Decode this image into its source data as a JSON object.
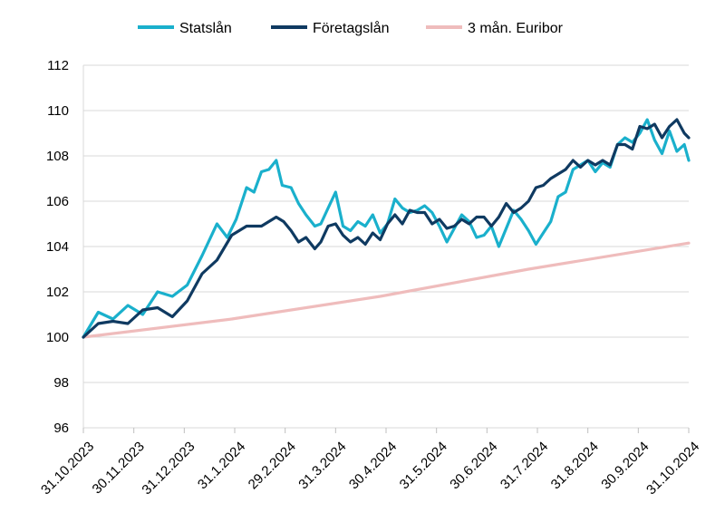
{
  "chart_data": {
    "type": "line",
    "title": "",
    "xlabel": "",
    "ylabel": "",
    "ylim": [
      96,
      112
    ],
    "yticks": [
      96,
      98,
      100,
      102,
      104,
      106,
      108,
      110,
      112
    ],
    "xtick_labels": [
      "31.10.2023",
      "30.11.2023",
      "31.12.2023",
      "31.1.2024",
      "29.2.2024",
      "31.3.2024",
      "30.4.2024",
      "31.5.2024",
      "30.6.2024",
      "31.7.2024",
      "31.8.2024",
      "30.9.2024",
      "31.10.2024"
    ],
    "grid": true,
    "legend_position": "top",
    "series": [
      {
        "name": "Statslån",
        "color": "#1ab0cc",
        "points": [
          [
            0,
            100.0
          ],
          [
            1,
            101.1
          ],
          [
            2,
            100.8
          ],
          [
            3,
            101.4
          ],
          [
            4,
            101.0
          ],
          [
            5,
            102.0
          ],
          [
            6,
            101.8
          ],
          [
            7,
            102.3
          ],
          [
            8,
            103.6
          ],
          [
            9,
            105.0
          ],
          [
            9.7,
            104.4
          ],
          [
            10.3,
            105.2
          ],
          [
            11,
            106.6
          ],
          [
            11.5,
            106.4
          ],
          [
            12,
            107.3
          ],
          [
            12.5,
            107.4
          ],
          [
            13,
            107.8
          ],
          [
            13.4,
            106.7
          ],
          [
            14,
            106.6
          ],
          [
            14.5,
            105.9
          ],
          [
            15,
            105.4
          ],
          [
            15.6,
            104.9
          ],
          [
            16,
            105.0
          ],
          [
            16.5,
            105.7
          ],
          [
            17,
            106.4
          ],
          [
            17.5,
            104.9
          ],
          [
            18,
            104.7
          ],
          [
            18.5,
            105.1
          ],
          [
            19,
            104.9
          ],
          [
            19.5,
            105.4
          ],
          [
            20,
            104.6
          ],
          [
            20.5,
            105.0
          ],
          [
            21,
            106.1
          ],
          [
            21.5,
            105.7
          ],
          [
            22,
            105.5
          ],
          [
            22.5,
            105.6
          ],
          [
            23,
            105.8
          ],
          [
            23.5,
            105.5
          ],
          [
            24,
            104.9
          ],
          [
            24.5,
            104.2
          ],
          [
            25,
            104.8
          ],
          [
            25.5,
            105.4
          ],
          [
            26,
            105.1
          ],
          [
            26.5,
            104.4
          ],
          [
            27,
            104.5
          ],
          [
            27.5,
            104.9
          ],
          [
            28,
            104.0
          ],
          [
            28.5,
            104.8
          ],
          [
            29,
            105.6
          ],
          [
            29.5,
            105.2
          ],
          [
            30,
            104.7
          ],
          [
            30.5,
            104.1
          ],
          [
            31,
            104.6
          ],
          [
            31.5,
            105.1
          ],
          [
            32,
            106.2
          ],
          [
            32.5,
            106.4
          ],
          [
            33,
            107.4
          ],
          [
            33.5,
            107.6
          ],
          [
            34,
            107.8
          ],
          [
            34.5,
            107.3
          ],
          [
            35,
            107.7
          ],
          [
            35.5,
            107.5
          ],
          [
            36,
            108.5
          ],
          [
            36.5,
            108.8
          ],
          [
            37,
            108.6
          ],
          [
            37.5,
            109.0
          ],
          [
            38,
            109.6
          ],
          [
            38.5,
            108.7
          ],
          [
            39,
            108.1
          ],
          [
            39.5,
            109.1
          ],
          [
            40,
            108.2
          ],
          [
            40.5,
            108.5
          ],
          [
            40.8,
            107.8
          ]
        ]
      },
      {
        "name": "Företagslån",
        "color": "#0f3a61",
        "points": [
          [
            0,
            100.0
          ],
          [
            1,
            100.6
          ],
          [
            2,
            100.7
          ],
          [
            3,
            100.6
          ],
          [
            4,
            101.2
          ],
          [
            5,
            101.3
          ],
          [
            6,
            100.9
          ],
          [
            7,
            101.6
          ],
          [
            8,
            102.8
          ],
          [
            9,
            103.4
          ],
          [
            10,
            104.5
          ],
          [
            11,
            104.9
          ],
          [
            12,
            104.9
          ],
          [
            13,
            105.3
          ],
          [
            13.5,
            105.1
          ],
          [
            14,
            104.7
          ],
          [
            14.5,
            104.2
          ],
          [
            15,
            104.4
          ],
          [
            15.6,
            103.9
          ],
          [
            16,
            104.2
          ],
          [
            16.5,
            104.9
          ],
          [
            17,
            105.0
          ],
          [
            17.5,
            104.5
          ],
          [
            18,
            104.2
          ],
          [
            18.5,
            104.4
          ],
          [
            19,
            104.1
          ],
          [
            19.5,
            104.6
          ],
          [
            20,
            104.3
          ],
          [
            20.5,
            105.0
          ],
          [
            21,
            105.4
          ],
          [
            21.5,
            105.0
          ],
          [
            22,
            105.6
          ],
          [
            22.5,
            105.5
          ],
          [
            23,
            105.5
          ],
          [
            23.5,
            105.0
          ],
          [
            24,
            105.2
          ],
          [
            24.5,
            104.8
          ],
          [
            25,
            104.9
          ],
          [
            25.5,
            105.2
          ],
          [
            26,
            105.0
          ],
          [
            26.5,
            105.3
          ],
          [
            27,
            105.3
          ],
          [
            27.5,
            104.9
          ],
          [
            28,
            105.3
          ],
          [
            28.5,
            105.9
          ],
          [
            29,
            105.5
          ],
          [
            29.5,
            105.7
          ],
          [
            30,
            106.0
          ],
          [
            30.5,
            106.6
          ],
          [
            31,
            106.7
          ],
          [
            31.5,
            107.0
          ],
          [
            32,
            107.2
          ],
          [
            32.5,
            107.4
          ],
          [
            33,
            107.8
          ],
          [
            33.5,
            107.5
          ],
          [
            34,
            107.8
          ],
          [
            34.5,
            107.6
          ],
          [
            35,
            107.8
          ],
          [
            35.5,
            107.6
          ],
          [
            36,
            108.5
          ],
          [
            36.5,
            108.5
          ],
          [
            37,
            108.3
          ],
          [
            37.5,
            109.3
          ],
          [
            38,
            109.2
          ],
          [
            38.5,
            109.4
          ],
          [
            39,
            108.8
          ],
          [
            39.5,
            109.3
          ],
          [
            40,
            109.6
          ],
          [
            40.5,
            109.0
          ],
          [
            40.8,
            108.8
          ]
        ]
      },
      {
        "name": "3 mån. Euribor",
        "color": "#efbcbc",
        "points": [
          [
            0,
            100.0
          ],
          [
            10,
            100.8
          ],
          [
            20,
            101.8
          ],
          [
            30,
            103.0
          ],
          [
            40.8,
            104.15
          ]
        ]
      }
    ]
  }
}
